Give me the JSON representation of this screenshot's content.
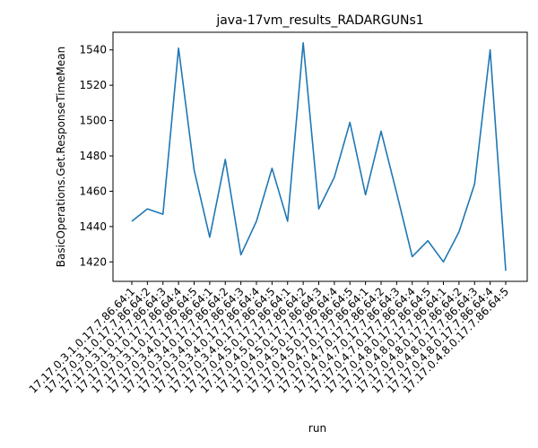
{
  "chart_data": {
    "type": "line",
    "title": "java-17vm_results_RADARGUNs1",
    "xlabel": "run",
    "ylabel": "BasicOperations.Get.ResponseTimeMean",
    "ylim": [
      1409,
      1550
    ],
    "yticks": [
      1420,
      1440,
      1460,
      1480,
      1500,
      1520,
      1540
    ],
    "grid": false,
    "line_color": "#1f77b4",
    "categories": [
      "17.17.0.3.1.0.17.7.86.64:1",
      "17.17.0.3.1.0.17.7.86.64:2",
      "17.17.0.3.1.0.17.7.86.64:3",
      "17.17.0.3.1.0.17.7.86.64:4",
      "17.17.0.3.1.0.17.7.86.64:5",
      "17.17.0.3.4.0.17.7.86.64:1",
      "17.17.0.3.4.0.17.7.86.64:2",
      "17.17.0.3.4.0.17.7.86.64:3",
      "17.17.0.3.4.0.17.7.86.64:4",
      "17.17.0.3.4.0.17.7.86.64:5",
      "17.17.0.4.5.0.17.7.86.64:1",
      "17.17.0.4.5.0.17.7.86.64:2",
      "17.17.0.4.5.0.17.7.86.64:3",
      "17.17.0.4.5.0.17.7.86.64:4",
      "17.17.0.4.5.0.17.7.86.64:5",
      "17.17.0.4.7.0.17.7.86.64:1",
      "17.17.0.4.7.0.17.7.86.64:2",
      "17.17.0.4.7.0.17.7.86.64:3",
      "17.17.0.4.7.0.17.7.86.64:4",
      "17.17.0.4.8.0.17.7.86.64:5",
      "17.17.0.4.8.0.17.7.86.64:1",
      "17.17.0.4.8.0.17.7.86.64:2",
      "17.17.0.4.8.0.17.7.86.64:3",
      "17.17.0.4.8.0.17.7.86.64:4",
      "17.17.0.4.8.0.17.7.86.64:5"
    ],
    "values": [
      1443,
      1450,
      1447,
      1541,
      1472,
      1434,
      1478,
      1424,
      1443,
      1473,
      1443,
      1544,
      1450,
      1468,
      1499,
      1458,
      1494,
      1459,
      1423,
      1432,
      1420,
      1437,
      1464,
      1540,
      1415
    ]
  }
}
